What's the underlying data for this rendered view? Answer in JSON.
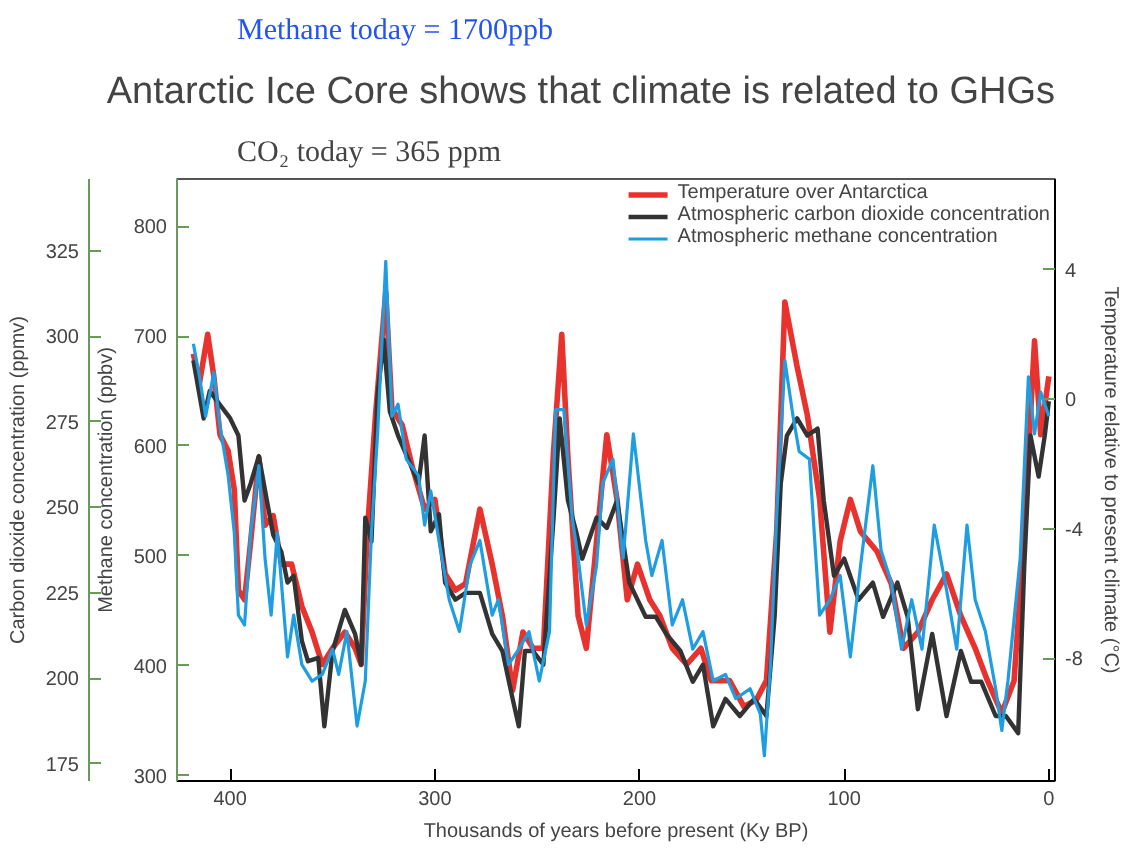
{
  "chart_data": {
    "type": "line",
    "title": "Antarctic Ice Core shows that climate is related to GHGs",
    "annotations": [
      "Methane today = 1700ppb",
      "CO₂ today = 365 ppm"
    ],
    "xlabel": "Thousands of years before present (Ky BP)",
    "ylabel": "Methane concentration (ppbv)",
    "y2label": "Temperature relative to present climate (°C)",
    "y3label": "Carbon dioxide concentration (ppmv)",
    "xlim": [
      426,
      -3
    ],
    "xticks": [
      400,
      300,
      200,
      100,
      0
    ],
    "ylim": [
      295,
      843
    ],
    "yticks": [
      300,
      400,
      500,
      600,
      700,
      800
    ],
    "y2lim": [
      -11.8,
      6.8
    ],
    "y2ticks": [
      4,
      0,
      -4,
      -8
    ],
    "y3lim": [
      170,
      346
    ],
    "y3ticks": [
      175,
      200,
      225,
      250,
      275,
      300,
      325
    ],
    "legend": "top right",
    "series": [
      {
        "name": "Temperature over Antarctica",
        "color": "#e8322d",
        "axis": "y2",
        "x": [
          418,
          415,
          411,
          408,
          405,
          401,
          398,
          396,
          393,
          390,
          386,
          383,
          379,
          375,
          370,
          365,
          360,
          355,
          350,
          344,
          339,
          336,
          333,
          329,
          324,
          321,
          316,
          311,
          305,
          300,
          295,
          290,
          285,
          278,
          272,
          267,
          262,
          257,
          252,
          247,
          242,
          238,
          235,
          230,
          226,
          216,
          211,
          206,
          201,
          195,
          190,
          184,
          177,
          170,
          165,
          156,
          149,
          143,
          138,
          133,
          129,
          123,
          118,
          112,
          107,
          102,
          97,
          92,
          84,
          77,
          71,
          64,
          57,
          50,
          43,
          36,
          30,
          23,
          17,
          12,
          7,
          4,
          0
        ],
        "values": [
          1.4,
          0.5,
          2.0,
          0.7,
          -1.1,
          -1.6,
          -2.8,
          -5.9,
          -6.2,
          -4.4,
          -1.8,
          -3.9,
          -3.6,
          -5.1,
          -5.1,
          -6.4,
          -7.2,
          -8.2,
          -7.7,
          -7.2,
          -7.7,
          -8.2,
          -4.1,
          -0.5,
          3.3,
          -0.3,
          -0.8,
          -2.1,
          -3.4,
          -3.1,
          -5.4,
          -5.9,
          -5.7,
          -3.4,
          -5.1,
          -6.7,
          -9.0,
          -7.2,
          -7.7,
          -7.7,
          -1.6,
          2.0,
          -1.8,
          -6.7,
          -7.7,
          -1.1,
          -3.1,
          -6.2,
          -5.1,
          -6.2,
          -6.7,
          -7.7,
          -8.2,
          -7.7,
          -8.7,
          -8.7,
          -9.5,
          -9.3,
          -8.7,
          -4.1,
          3.0,
          1.0,
          -0.5,
          -3.1,
          -7.2,
          -4.4,
          -3.1,
          -4.1,
          -4.7,
          -5.7,
          -7.7,
          -7.2,
          -6.2,
          -5.4,
          -6.7,
          -7.7,
          -8.7,
          -9.7,
          -8.7,
          -4.1,
          1.8,
          -1.1,
          0.7
        ]
      },
      {
        "name": "Atmospheric carbon dioxide concentration",
        "color": "#333333",
        "axis": "y3",
        "x": [
          418,
          413,
          410,
          405,
          400,
          396,
          393,
          390,
          386,
          383,
          379,
          375,
          372,
          369,
          365,
          362,
          357,
          354,
          350,
          344,
          339,
          336,
          334,
          331,
          328,
          325,
          322,
          318,
          313,
          308,
          305,
          302,
          298,
          295,
          290,
          285,
          278,
          272,
          267,
          262,
          259,
          256,
          252,
          247,
          242,
          239,
          235,
          231,
          228,
          225,
          221,
          216,
          211,
          205,
          197,
          192,
          187,
          180,
          174,
          169,
          164,
          158,
          151,
          144,
          138,
          134,
          131,
          128,
          123,
          118,
          113,
          110,
          105,
          100,
          93,
          86,
          81,
          74,
          69,
          64,
          57,
          50,
          43,
          38,
          33,
          26,
          21,
          15,
          12,
          9,
          5,
          2,
          0
        ],
        "values": [
          293,
          276,
          284,
          280,
          276,
          271,
          252,
          257,
          265,
          255,
          242,
          237,
          228,
          230,
          211,
          205,
          206,
          186,
          208,
          220,
          213,
          204,
          247,
          240,
          283,
          299,
          278,
          271,
          264,
          257,
          271,
          243,
          248,
          228,
          223,
          225,
          225,
          213,
          208,
          194,
          186,
          208,
          208,
          204,
          247,
          276,
          252,
          243,
          235,
          240,
          247,
          244,
          252,
          228,
          218,
          218,
          213,
          208,
          199,
          204,
          186,
          194,
          189,
          194,
          189,
          218,
          257,
          271,
          276,
          271,
          273,
          252,
          230,
          235,
          223,
          228,
          218,
          228,
          218,
          191,
          213,
          189,
          208,
          199,
          199,
          189,
          189,
          184,
          233,
          271,
          259,
          271,
          281
        ]
      },
      {
        "name": "Atmospheric methane concentration",
        "color": "#1e9ee0",
        "axis": "y",
        "x": [
          418,
          415,
          412,
          408,
          405,
          401,
          398,
          396,
          393,
          390,
          386,
          383,
          380,
          377,
          372,
          369,
          365,
          360,
          355,
          350,
          347,
          343,
          338,
          334,
          331,
          328,
          324,
          321,
          318,
          314,
          308,
          305,
          302,
          298,
          293,
          288,
          283,
          278,
          272,
          269,
          264,
          259,
          254,
          249,
          244,
          241,
          237,
          233,
          230,
          226,
          221,
          218,
          213,
          208,
          203,
          197,
          194,
          189,
          184,
          179,
          174,
          169,
          164,
          158,
          153,
          146,
          141,
          139,
          136,
          133,
          129,
          125,
          122,
          117,
          112,
          107,
          102,
          97,
          92,
          86,
          82,
          77,
          72,
          67,
          62,
          56,
          50,
          45,
          40,
          36,
          31,
          26,
          23,
          20,
          14,
          10,
          7,
          4,
          0
        ],
        "values": [
          693,
          663,
          627,
          667,
          618,
          573,
          521,
          446,
          437,
          521,
          582,
          498,
          446,
          521,
          408,
          446,
          401,
          386,
          392,
          415,
          392,
          431,
          345,
          386,
          521,
          611,
          768,
          627,
          638,
          588,
          573,
          528,
          559,
          514,
          460,
          431,
          491,
          514,
          446,
          460,
          401,
          415,
          431,
          386,
          431,
          633,
          633,
          536,
          498,
          437,
          491,
          566,
          588,
          498,
          611,
          514,
          482,
          514,
          437,
          460,
          415,
          431,
          386,
          392,
          370,
          379,
          356,
          318,
          401,
          536,
          678,
          627,
          595,
          588,
          446,
          460,
          482,
          408,
          491,
          582,
          505,
          476,
          415,
          460,
          415,
          528,
          469,
          415,
          528,
          460,
          431,
          379,
          341,
          386,
          498,
          663,
          611,
          649,
          627
        ]
      }
    ]
  }
}
